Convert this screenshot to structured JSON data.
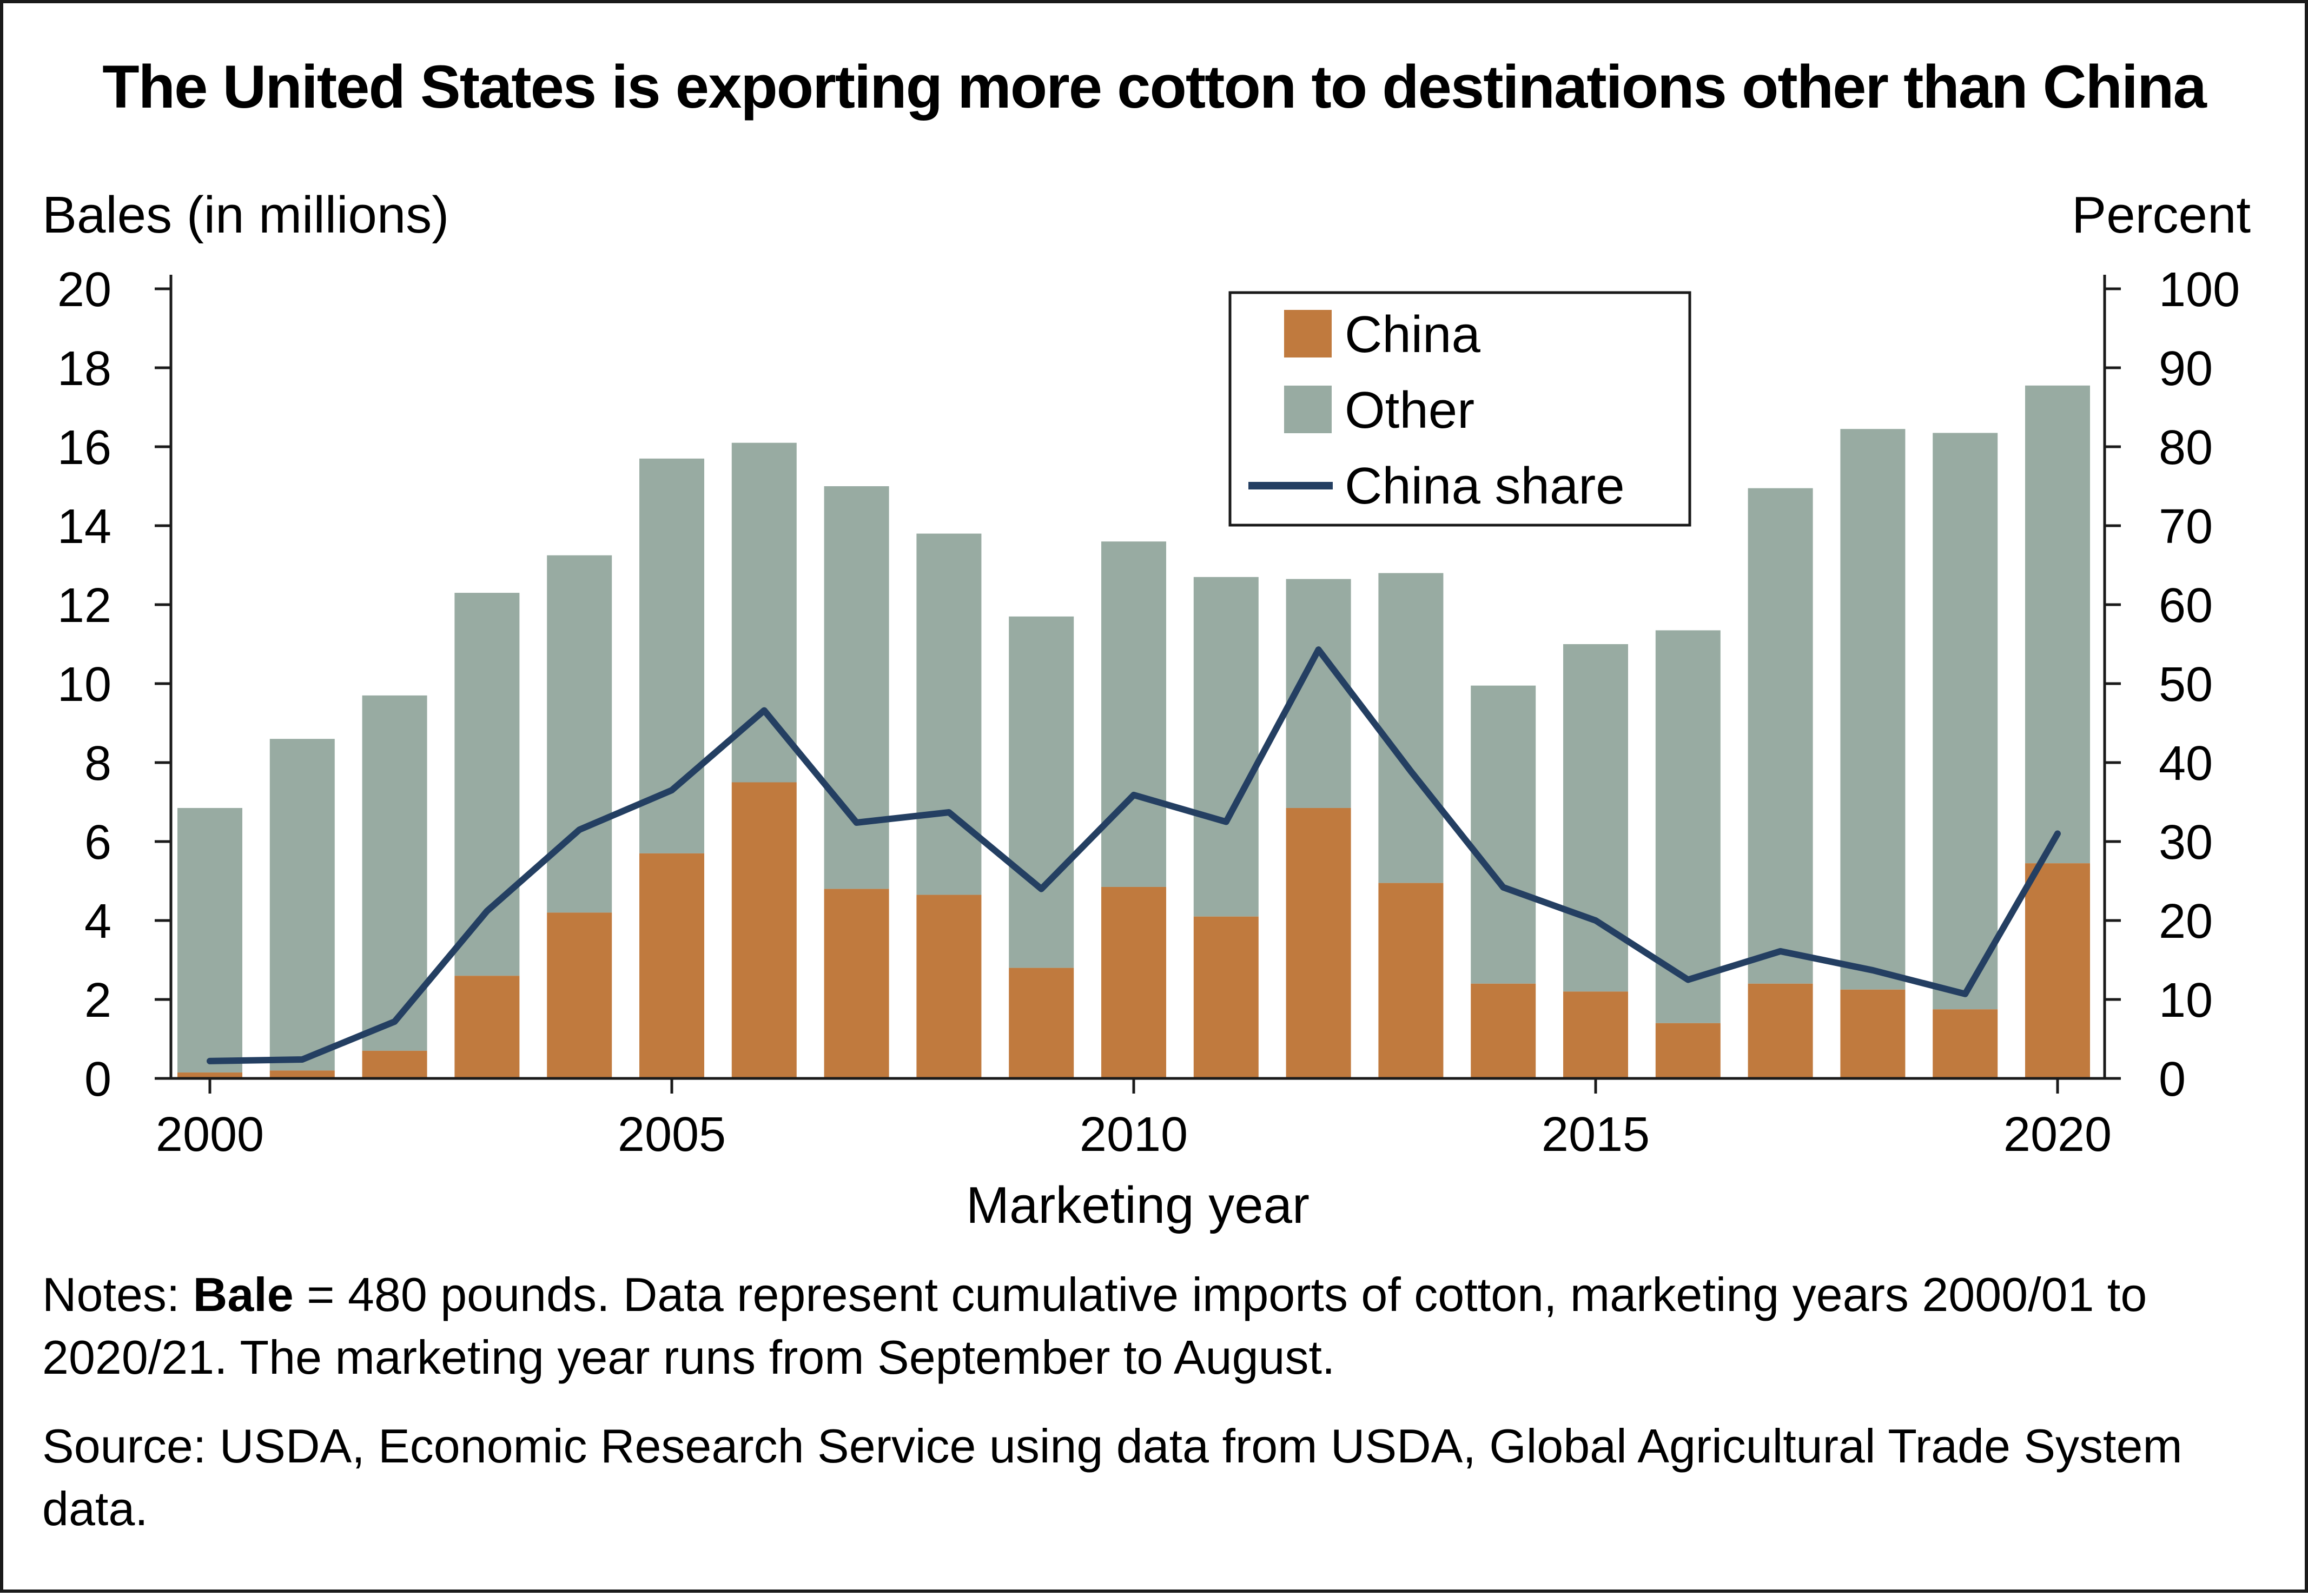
{
  "chart_data": {
    "type": "bar",
    "title": "The United States is exporting more cotton to destinations other than China",
    "xlabel": "Marketing year",
    "ylabel_left": "Bales (in millions)",
    "ylabel_right": "Percent",
    "ylim_left": [
      0,
      20
    ],
    "ylim_right": [
      0,
      100
    ],
    "yticks_left": [
      "0",
      "2",
      "4",
      "6",
      "8",
      "10",
      "12",
      "14",
      "16",
      "18",
      "20"
    ],
    "yticks_right": [
      "0",
      "10",
      "20",
      "30",
      "40",
      "50",
      "60",
      "70",
      "80",
      "90",
      "100"
    ],
    "xticks": [
      "2000",
      "2005",
      "2010",
      "2015",
      "2020"
    ],
    "stacked": true,
    "legend_position": "top-center",
    "x": [
      2000,
      2001,
      2002,
      2003,
      2004,
      2005,
      2006,
      2007,
      2008,
      2009,
      2010,
      2011,
      2012,
      2013,
      2014,
      2015,
      2016,
      2017,
      2018,
      2019,
      2020
    ],
    "series": [
      {
        "name": "China",
        "kind": "bar",
        "axis": "left",
        "color": "#c07a3e",
        "values": [
          0.15,
          0.2,
          0.7,
          2.6,
          4.2,
          5.7,
          7.5,
          4.8,
          4.65,
          2.8,
          4.85,
          4.1,
          6.85,
          4.95,
          2.4,
          2.2,
          1.4,
          2.4,
          2.25,
          1.75,
          5.45
        ]
      },
      {
        "name": "Other",
        "kind": "bar",
        "axis": "left",
        "color": "#98aba2",
        "values": [
          6.7,
          8.4,
          9.0,
          9.7,
          9.05,
          10.0,
          8.6,
          10.2,
          9.15,
          8.9,
          8.75,
          8.6,
          5.8,
          7.85,
          7.55,
          8.8,
          9.95,
          12.55,
          14.2,
          14.6,
          12.1
        ]
      },
      {
        "name": "China share",
        "kind": "line",
        "axis": "right",
        "color": "#243f62",
        "values": [
          2.2,
          2.4,
          7.2,
          21.2,
          31.5,
          36.5,
          46.6,
          32.4,
          33.7,
          24.0,
          35.9,
          32.5,
          54.3,
          38.9,
          24.2,
          20.0,
          12.5,
          16.1,
          13.7,
          10.7,
          31.0
        ]
      }
    ]
  },
  "notes": {
    "prefix": "Notes: ",
    "bold": "Bale",
    "text": " = 480 pounds. Data represent cumulative imports of cotton, marketing years 2000/01 to 2020/21. The marketing year runs from September to August."
  },
  "source": "Source: USDA, Economic Research Service using data from USDA, Global Agricultural Trade System data."
}
